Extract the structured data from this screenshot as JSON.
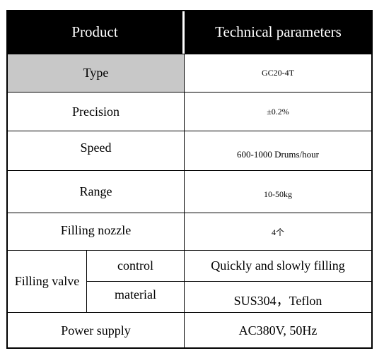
{
  "table": {
    "header": [
      "Product",
      "Technical parameters"
    ],
    "rows": [
      [
        "Type",
        "GC20-4T"
      ],
      [
        "Precision",
        "±0.2%"
      ],
      [
        "Speed",
        "600-1000 Drums/hour"
      ],
      [
        "Range",
        "10-50kg"
      ],
      [
        "Filling nozzle",
        "4个"
      ],
      [
        "Filling valve",
        "control",
        "Quickly and slowly filling"
      ],
      [
        "material",
        "SUS304，Teflon"
      ],
      [
        "Power supply",
        "AC380V, 50Hz"
      ]
    ]
  }
}
